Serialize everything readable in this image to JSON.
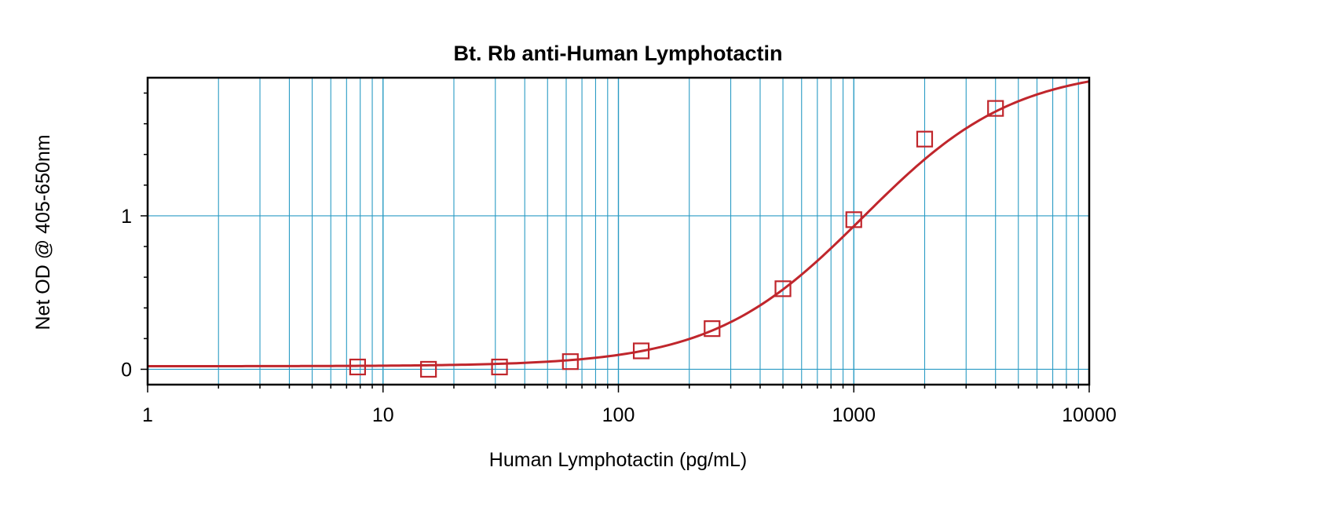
{
  "chart_data": {
    "type": "scatter",
    "title": "Bt. Rb anti-Human Lymphotactin",
    "xlabel": "Human Lymphotactin (pg/mL)",
    "ylabel": "Net OD @ 405-650nm",
    "x_scale": "log",
    "xlim": [
      1,
      10000
    ],
    "ylim": [
      -0.1,
      1.9
    ],
    "x_ticks": [
      1,
      10,
      100,
      1000,
      10000
    ],
    "x_tick_labels": [
      "1",
      "10",
      "100",
      "1000",
      "10000"
    ],
    "y_ticks": [
      0,
      1
    ],
    "y_tick_labels": [
      "0",
      "1"
    ],
    "grid": true,
    "grid_color": "#2a9bc4",
    "series": [
      {
        "marker": "square-open",
        "color": "#c0262c",
        "x": [
          7.8,
          15.6,
          31.25,
          62.5,
          125,
          250,
          500,
          1000,
          2000,
          4000
        ],
        "y": [
          0.015,
          0.0,
          0.015,
          0.05,
          0.12,
          0.265,
          0.525,
          0.975,
          1.5,
          1.7
        ]
      }
    ],
    "fit_curve": {
      "model": "4PL",
      "color": "#c0262c",
      "bottom": 0.02,
      "top": 1.97,
      "ec50": 1100,
      "hill": 1.35
    }
  }
}
